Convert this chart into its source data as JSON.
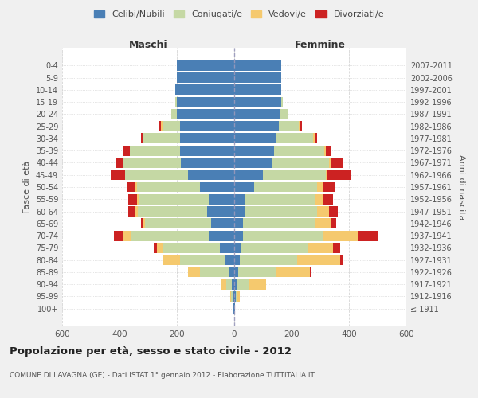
{
  "age_groups": [
    "100+",
    "95-99",
    "90-94",
    "85-89",
    "80-84",
    "75-79",
    "70-74",
    "65-69",
    "60-64",
    "55-59",
    "50-54",
    "45-49",
    "40-44",
    "35-39",
    "30-34",
    "25-29",
    "20-24",
    "15-19",
    "10-14",
    "5-9",
    "0-4"
  ],
  "birth_years": [
    "≤ 1911",
    "1912-1916",
    "1917-1921",
    "1922-1926",
    "1927-1931",
    "1932-1936",
    "1937-1941",
    "1942-1946",
    "1947-1951",
    "1952-1956",
    "1957-1961",
    "1962-1966",
    "1967-1971",
    "1972-1976",
    "1977-1981",
    "1982-1986",
    "1987-1991",
    "1992-1996",
    "1997-2001",
    "2002-2006",
    "2007-2011"
  ],
  "colors": {
    "celibi": "#4a7fb5",
    "coniugati": "#c5d8a4",
    "vedovi": "#f5c96e",
    "divorziati": "#cc2222"
  },
  "maschi": {
    "celibi": [
      2,
      5,
      8,
      20,
      30,
      50,
      90,
      80,
      95,
      90,
      120,
      160,
      185,
      190,
      190,
      190,
      200,
      200,
      205,
      200,
      200
    ],
    "coniugati": [
      0,
      5,
      20,
      100,
      160,
      200,
      270,
      230,
      240,
      240,
      220,
      220,
      205,
      175,
      130,
      60,
      20,
      5,
      0,
      0,
      0
    ],
    "vedovi": [
      0,
      5,
      20,
      40,
      60,
      20,
      30,
      10,
      10,
      10,
      5,
      0,
      0,
      0,
      0,
      5,
      0,
      0,
      0,
      0,
      0
    ],
    "divorziati": [
      0,
      0,
      0,
      0,
      0,
      10,
      30,
      5,
      25,
      30,
      30,
      50,
      20,
      20,
      5,
      5,
      0,
      0,
      0,
      0,
      0
    ]
  },
  "femmine": {
    "celibi": [
      2,
      5,
      10,
      15,
      20,
      25,
      30,
      30,
      40,
      40,
      70,
      100,
      130,
      140,
      145,
      155,
      160,
      165,
      165,
      165,
      165
    ],
    "coniugati": [
      0,
      5,
      40,
      130,
      200,
      230,
      280,
      250,
      250,
      240,
      220,
      220,
      200,
      175,
      130,
      70,
      30,
      5,
      0,
      0,
      0
    ],
    "vedovi": [
      0,
      10,
      60,
      120,
      150,
      90,
      120,
      60,
      40,
      30,
      20,
      5,
      5,
      5,
      5,
      5,
      0,
      0,
      0,
      0,
      0
    ],
    "divorziati": [
      0,
      0,
      0,
      5,
      10,
      25,
      70,
      15,
      30,
      35,
      40,
      80,
      45,
      20,
      10,
      5,
      0,
      0,
      0,
      0,
      0
    ]
  },
  "title": "Popolazione per età, sesso e stato civile - 2012",
  "subtitle": "COMUNE DI LAVAGNA (GE) - Dati ISTAT 1° gennaio 2012 - Elaborazione TUTTITALIA.IT",
  "xlabel_left": "Maschi",
  "xlabel_right": "Femmine",
  "ylabel_left": "Fasce di età",
  "ylabel_right": "Anni di nascita",
  "xlim": 600,
  "legend_labels": [
    "Celibi/Nubili",
    "Coniugati/e",
    "Vedovi/e",
    "Divorziati/e"
  ],
  "bg_color": "#f0f0f0",
  "plot_bg": "#ffffff"
}
